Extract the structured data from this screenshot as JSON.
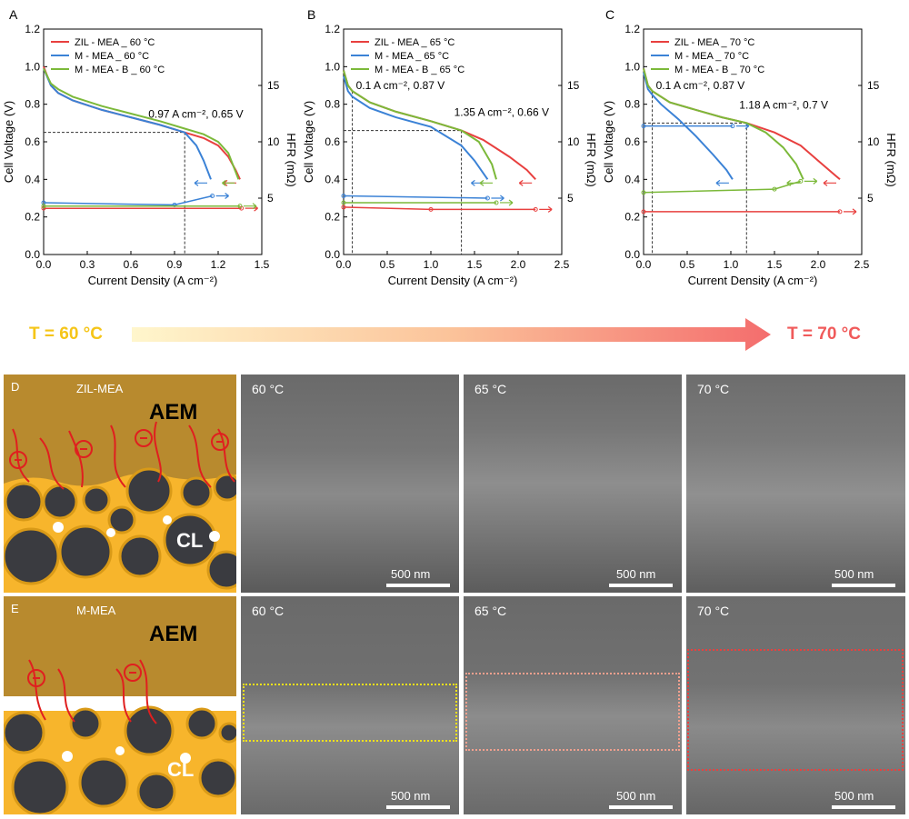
{
  "panels_top": [
    {
      "letter": "A",
      "annotation": "0.97 A cm⁻², 0.65 V"
    },
    {
      "letter": "B",
      "annotation": "1.35 A cm⁻², 0.66 V",
      "annotation2": "0.1 A cm⁻², 0.87 V"
    },
    {
      "letter": "C",
      "annotation": "1.18 A cm⁻², 0.7 V",
      "annotation2": "0.1 A cm⁻², 0.87 V"
    }
  ],
  "temperature_bar": {
    "left": "T = 60 °C",
    "right": "T = 70 °C",
    "left_color": "#f5c518",
    "right_color": "#f05a5a"
  },
  "row_D": {
    "letter": "D",
    "title": "ZIL-MEA",
    "aem": "AEM",
    "cl": "CL",
    "images": [
      {
        "label": "60 °C",
        "scale": "500 nm"
      },
      {
        "label": "65 °C",
        "scale": "500 nm"
      },
      {
        "label": "70 °C",
        "scale": "500 nm"
      }
    ]
  },
  "row_E": {
    "letter": "E",
    "title": "M-MEA",
    "aem": "AEM",
    "cl": "CL",
    "images": [
      {
        "label": "60 °C",
        "scale": "500 nm"
      },
      {
        "label": "65 °C",
        "scale": "500 nm"
      },
      {
        "label": "70 °C",
        "scale": "500 nm"
      }
    ]
  },
  "chart_data": [
    {
      "type": "line",
      "xlabel": "Current Density (A cm⁻²)",
      "ylabel": "Cell Voltage (V)",
      "y2label": "HFR (mΩ)",
      "xlim": [
        0,
        1.5
      ],
      "ylim": [
        0,
        1.2
      ],
      "y2lim": [
        0,
        20
      ],
      "xticks": [
        "0.0",
        "0.3",
        "0.6",
        "0.9",
        "1.2",
        "1.5"
      ],
      "yticks": [
        "0.0",
        "0.2",
        "0.4",
        "0.6",
        "0.8",
        "1.0",
        "1.2"
      ],
      "y2ticks": [
        "5",
        "10",
        "15"
      ],
      "marker": {
        "x": 0.97,
        "y": 0.65
      },
      "series": [
        {
          "name": "ZIL - MEA _ 60 °C",
          "color": "#e8403f",
          "x": [
            0,
            0.05,
            0.1,
            0.2,
            0.4,
            0.6,
            0.8,
            0.97,
            1.1,
            1.2,
            1.27,
            1.32,
            1.35
          ],
          "y": [
            1.0,
            0.9,
            0.86,
            0.82,
            0.77,
            0.73,
            0.69,
            0.65,
            0.62,
            0.58,
            0.52,
            0.45,
            0.4
          ],
          "hfr_x": [
            0,
            1.36
          ],
          "hfr_y": [
            4.1,
            4.1
          ]
        },
        {
          "name": "M - MEA _ 60 °C",
          "color": "#3b82d6",
          "x": [
            0,
            0.05,
            0.1,
            0.2,
            0.4,
            0.6,
            0.8,
            0.97,
            1.05,
            1.1,
            1.15
          ],
          "y": [
            0.99,
            0.9,
            0.86,
            0.82,
            0.77,
            0.73,
            0.69,
            0.65,
            0.58,
            0.5,
            0.4
          ],
          "hfr_x": [
            0,
            0.9,
            1.16
          ],
          "hfr_y": [
            4.6,
            4.4,
            5.2
          ]
        },
        {
          "name": "M - MEA - B _ 60 °C",
          "color": "#7cb93a",
          "x": [
            0,
            0.05,
            0.1,
            0.2,
            0.4,
            0.6,
            0.8,
            0.97,
            1.1,
            1.2,
            1.27,
            1.31,
            1.34
          ],
          "y": [
            0.99,
            0.91,
            0.88,
            0.84,
            0.79,
            0.75,
            0.71,
            0.67,
            0.64,
            0.6,
            0.54,
            0.46,
            0.4
          ],
          "hfr_x": [
            0,
            1.35
          ],
          "hfr_y": [
            4.3,
            4.3
          ]
        }
      ]
    },
    {
      "type": "line",
      "xlabel": "Current Density (A cm⁻²)",
      "ylabel": "Cell Voltage (V)",
      "y2label": "HFR (mΩ)",
      "xlim": [
        0,
        2.5
      ],
      "ylim": [
        0,
        1.2
      ],
      "y2lim": [
        0,
        20
      ],
      "xticks": [
        "0.0",
        "0.5",
        "1.0",
        "1.5",
        "2.0",
        "2.5"
      ],
      "yticks": [
        "0.0",
        "0.2",
        "0.4",
        "0.6",
        "0.8",
        "1.0",
        "1.2"
      ],
      "y2ticks": [
        "5",
        "10",
        "15"
      ],
      "marker": {
        "x": 1.35,
        "y": 0.66
      },
      "marker2": {
        "x": 0.1,
        "y": 0.87
      },
      "series": [
        {
          "name": "ZIL - MEA _ 65 °C",
          "color": "#e8403f",
          "x": [
            0,
            0.05,
            0.1,
            0.3,
            0.6,
            1.0,
            1.35,
            1.6,
            1.9,
            2.1,
            2.2
          ],
          "y": [
            0.98,
            0.9,
            0.87,
            0.81,
            0.76,
            0.71,
            0.66,
            0.61,
            0.52,
            0.45,
            0.4
          ],
          "hfr_x": [
            0,
            1.0,
            2.2
          ],
          "hfr_y": [
            4.2,
            4.0,
            4.0
          ]
        },
        {
          "name": "M - MEA _ 65 °C",
          "color": "#3b82d6",
          "x": [
            0,
            0.05,
            0.1,
            0.3,
            0.6,
            1.0,
            1.35,
            1.5,
            1.65
          ],
          "y": [
            0.95,
            0.87,
            0.84,
            0.78,
            0.73,
            0.68,
            0.58,
            0.5,
            0.4
          ],
          "hfr_x": [
            0,
            1.65
          ],
          "hfr_y": [
            5.2,
            5.0
          ]
        },
        {
          "name": "M - MEA - B _ 65 °C",
          "color": "#7cb93a",
          "x": [
            0,
            0.05,
            0.1,
            0.3,
            0.6,
            1.0,
            1.35,
            1.55,
            1.7,
            1.75
          ],
          "y": [
            0.98,
            0.9,
            0.87,
            0.81,
            0.76,
            0.71,
            0.66,
            0.6,
            0.48,
            0.4
          ],
          "hfr_x": [
            0,
            1.75
          ],
          "hfr_y": [
            4.6,
            4.6
          ]
        }
      ]
    },
    {
      "type": "line",
      "xlabel": "Current Density (A cm⁻²)",
      "ylabel": "Cell Voltage (V)",
      "y2label": "HFR (mΩ)",
      "xlim": [
        0,
        2.5
      ],
      "ylim": [
        0,
        1.2
      ],
      "y2lim": [
        0,
        20
      ],
      "xticks": [
        "0.0",
        "0.5",
        "1.0",
        "1.5",
        "2.0",
        "2.5"
      ],
      "yticks": [
        "0.0",
        "0.2",
        "0.4",
        "0.6",
        "0.8",
        "1.0",
        "1.2"
      ],
      "y2ticks": [
        "5",
        "10",
        "15"
      ],
      "marker": {
        "x": 1.18,
        "y": 0.7
      },
      "marker2": {
        "x": 0.1,
        "y": 0.87
      },
      "series": [
        {
          "name": "ZIL - MEA _ 70 °C",
          "color": "#e8403f",
          "x": [
            0,
            0.05,
            0.1,
            0.3,
            0.6,
            0.9,
            1.18,
            1.5,
            1.8,
            2.0,
            2.2,
            2.25
          ],
          "y": [
            0.99,
            0.9,
            0.87,
            0.81,
            0.77,
            0.73,
            0.7,
            0.65,
            0.58,
            0.5,
            0.42,
            0.4
          ],
          "hfr_x": [
            0,
            2.25
          ],
          "hfr_y": [
            3.8,
            3.8
          ]
        },
        {
          "name": "M - MEA _ 70 °C",
          "color": "#3b82d6",
          "x": [
            0,
            0.05,
            0.1,
            0.2,
            0.4,
            0.6,
            0.8,
            0.95,
            1.02
          ],
          "y": [
            0.97,
            0.88,
            0.85,
            0.8,
            0.72,
            0.63,
            0.53,
            0.45,
            0.4
          ],
          "hfr_x": [
            0,
            1.02
          ],
          "hfr_y": [
            11.4,
            11.4
          ]
        },
        {
          "name": "M - MEA - B _ 70 °C",
          "color": "#7cb93a",
          "x": [
            0,
            0.05,
            0.1,
            0.3,
            0.6,
            0.9,
            1.18,
            1.4,
            1.6,
            1.75,
            1.83
          ],
          "y": [
            0.99,
            0.9,
            0.87,
            0.81,
            0.77,
            0.73,
            0.7,
            0.65,
            0.57,
            0.48,
            0.4
          ],
          "hfr_x": [
            0,
            1.5,
            1.8
          ],
          "hfr_y": [
            5.5,
            5.8,
            6.5
          ]
        }
      ]
    }
  ]
}
